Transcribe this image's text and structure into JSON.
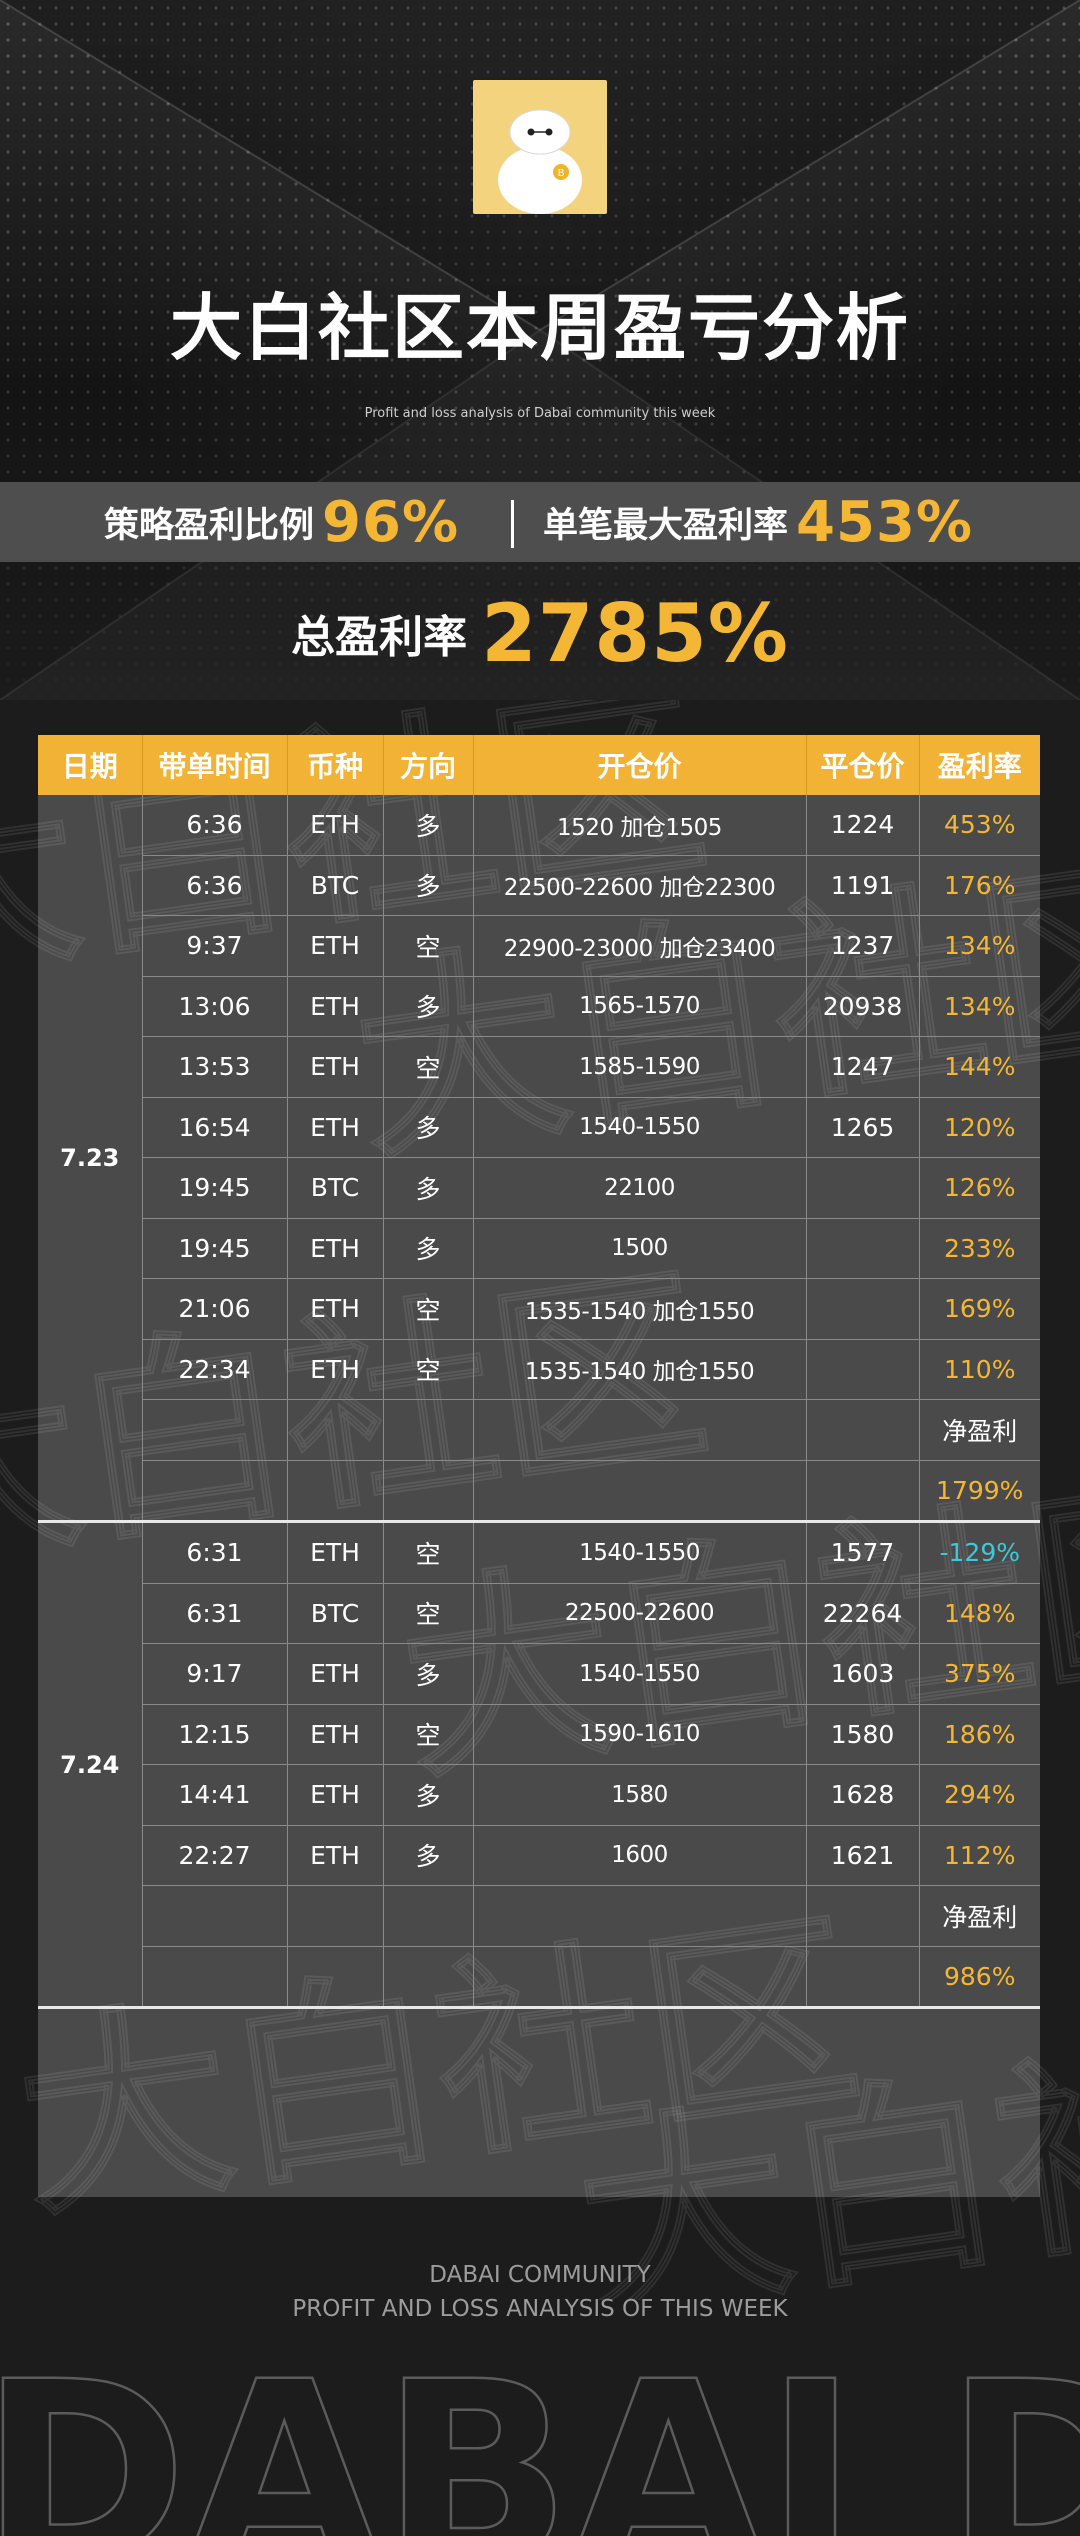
{
  "header": {
    "title": "大白社区本周盈亏分析",
    "subtitle": "Profit and loss analysis of Dabai community this week"
  },
  "stats": {
    "strategy_label": "策略盈利比例",
    "strategy_value": "96%",
    "max_label": "单笔最大盈利率",
    "max_value": "453%",
    "total_label": "总盈利率",
    "total_value": "2785%"
  },
  "table": {
    "headers": [
      "日期",
      "带单时间",
      "币种",
      "方向",
      "开仓价",
      "平仓价",
      "盈利率"
    ],
    "groups": [
      {
        "date": "7.23",
        "rows": [
          {
            "time": "6:36",
            "coin": "ETH",
            "dir": "多",
            "open": "1520  加仓1505",
            "close": "1224",
            "rate": "453%"
          },
          {
            "time": "6:36",
            "coin": "BTC",
            "dir": "多",
            "open": "22500-22600  加仓22300",
            "close": "1191",
            "rate": "176%"
          },
          {
            "time": "9:37",
            "coin": "ETH",
            "dir": "空",
            "open": "22900-23000  加仓23400",
            "close": "1237",
            "rate": "134%"
          },
          {
            "time": "13:06",
            "coin": "ETH",
            "dir": "多",
            "open": "1565-1570",
            "close": "20938",
            "rate": "134%"
          },
          {
            "time": "13:53",
            "coin": "ETH",
            "dir": "空",
            "open": "1585-1590",
            "close": "1247",
            "rate": "144%"
          },
          {
            "time": "16:54",
            "coin": "ETH",
            "dir": "多",
            "open": "1540-1550",
            "close": "1265",
            "rate": "120%"
          },
          {
            "time": "19:45",
            "coin": "BTC",
            "dir": "多",
            "open": "22100",
            "close": "",
            "rate": "126%"
          },
          {
            "time": "19:45",
            "coin": "ETH",
            "dir": "多",
            "open": "1500",
            "close": "",
            "rate": "233%"
          },
          {
            "time": "21:06",
            "coin": "ETH",
            "dir": "空",
            "open": "1535-1540  加仓1550",
            "close": "",
            "rate": "169%"
          },
          {
            "time": "22:34",
            "coin": "ETH",
            "dir": "空",
            "open": "1535-1540  加仓1550",
            "close": "",
            "rate": "110%"
          }
        ],
        "net_label": "净盈利",
        "net_value": "1799%"
      },
      {
        "date": "7.24",
        "rows": [
          {
            "time": "6:31",
            "coin": "ETH",
            "dir": "空",
            "open": "1540-1550",
            "close": "1577",
            "rate": "-129%"
          },
          {
            "time": "6:31",
            "coin": "BTC",
            "dir": "空",
            "open": "22500-22600",
            "close": "22264",
            "rate": "148%"
          },
          {
            "time": "9:17",
            "coin": "ETH",
            "dir": "多",
            "open": "1540-1550",
            "close": "1603",
            "rate": "375%"
          },
          {
            "time": "12:15",
            "coin": "ETH",
            "dir": "空",
            "open": "1590-1610",
            "close": "1580",
            "rate": "186%"
          },
          {
            "time": "14:41",
            "coin": "ETH",
            "dir": "多",
            "open": "1580",
            "close": "1628",
            "rate": "294%"
          },
          {
            "time": "22:27",
            "coin": "ETH",
            "dir": "多",
            "open": "1600",
            "close": "1621",
            "rate": "112%"
          }
        ],
        "net_label": "净盈利",
        "net_value": "986%"
      }
    ]
  },
  "watermark_text": "大白社区",
  "footer": {
    "line1": "DABAI COMMUNITY",
    "line2": "PROFIT AND LOSS ANALYSIS OF THIS WEEK",
    "brand": "DABAI DABAI"
  },
  "colors": {
    "accent": "#f3b735",
    "negative": "#3fc8d8",
    "header_bg": "#f2b236"
  }
}
